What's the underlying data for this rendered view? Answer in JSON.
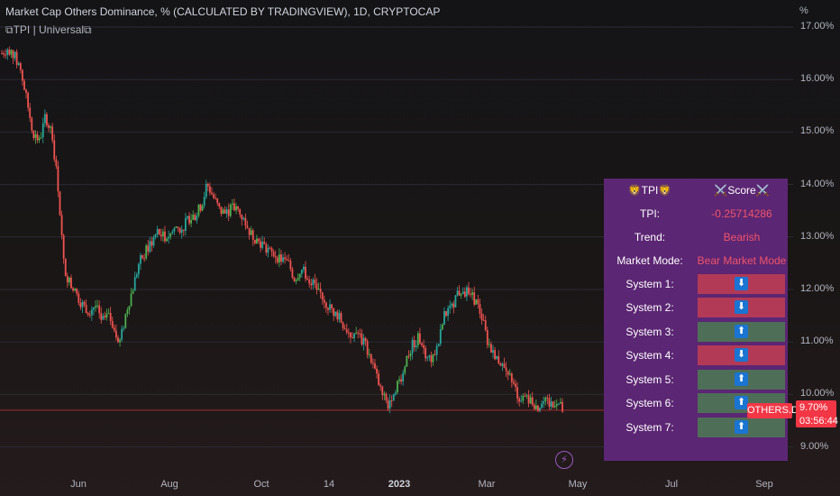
{
  "header": {
    "title": "Market Cap Others Dominance, % (CALCULATED BY TRADINGVIEW), 1D, CRYPTOCAP",
    "indicator": "⧉TPI | Universal⧉"
  },
  "price_scale": {
    "unit": "%",
    "ticks": [
      "17.00%",
      "16.00%",
      "15.00%",
      "14.00%",
      "13.00%",
      "12.00%",
      "11.00%",
      "10.00%",
      "9.00%"
    ]
  },
  "time_scale": {
    "ticks": [
      {
        "label": "Jun",
        "bold": false
      },
      {
        "label": "Aug",
        "bold": false
      },
      {
        "label": "Oct",
        "bold": false
      },
      {
        "label": "14",
        "bold": false
      },
      {
        "label": "2023",
        "bold": true
      },
      {
        "label": "Mar",
        "bold": false
      },
      {
        "label": "May",
        "bold": false
      },
      {
        "label": "Jul",
        "bold": false
      },
      {
        "label": "Sep",
        "bold": false
      }
    ]
  },
  "last_price": {
    "value": "9.70%",
    "countdown": "03:56:44",
    "symbol": "OTHERS.D",
    "color": "#f23645"
  },
  "colors": {
    "up_candle": "#26a69a",
    "up_candle_alt": "#4caf50",
    "down_candle": "#ef5350",
    "panel_bg": "#5b2673"
  },
  "tpi_table": {
    "header_left": "🦁TPI🦁",
    "header_right": "⚔️Score⚔️",
    "rows": [
      {
        "label": "TPI:",
        "value": "-0.25714286"
      },
      {
        "label": "Trend:",
        "value": "Bearish"
      },
      {
        "label": "Market Mode:",
        "value": "Bear Market Mode"
      }
    ],
    "systems": [
      {
        "label": "System 1:",
        "direction": "down",
        "arrow": "⬇"
      },
      {
        "label": "System 2:",
        "direction": "down",
        "arrow": "⬇"
      },
      {
        "label": "System 3:",
        "direction": "up",
        "arrow": "⬆"
      },
      {
        "label": "System 4:",
        "direction": "down",
        "arrow": "⬇"
      },
      {
        "label": "System 5:",
        "direction": "up",
        "arrow": "⬆"
      },
      {
        "label": "System 6:",
        "direction": "up",
        "arrow": "⬆"
      },
      {
        "label": "System 7:",
        "direction": "up",
        "arrow": "⬆"
      }
    ]
  },
  "chart_data": {
    "type": "candlestick",
    "series_name": "",
    "ylim": [
      9.0,
      17.0
    ],
    "x_ticks": [
      "Jun",
      "Aug",
      "Oct",
      "14",
      "2023",
      "Mar",
      "May",
      "Jul",
      "Sep"
    ],
    "y_ticks": [
      17,
      16,
      15,
      14,
      13,
      12,
      11,
      10,
      9
    ],
    "path_close": [
      16.5,
      16.6,
      16.45,
      16.2,
      15.6,
      15.0,
      14.8,
      15.3,
      15.0,
      14.0,
      12.4,
      12.1,
      11.9,
      11.7,
      11.6,
      11.7,
      11.4,
      11.5,
      11.3,
      11.0,
      11.6,
      12.0,
      12.5,
      12.7,
      12.9,
      13.1,
      13.0,
      13.05,
      13.2,
      13.15,
      13.35,
      13.4,
      13.6,
      14.0,
      13.75,
      13.5,
      13.45,
      13.55,
      13.5,
      13.3,
      13.05,
      12.95,
      12.85,
      12.7,
      12.65,
      12.55,
      12.5,
      12.2,
      12.4,
      12.25,
      12.1,
      11.95,
      11.75,
      11.6,
      11.5,
      11.3,
      11.15,
      11.2,
      11.0,
      10.8,
      10.4,
      10.0,
      9.8,
      10.1,
      10.3,
      10.7,
      10.95,
      11.1,
      10.8,
      10.7,
      10.9,
      11.5,
      11.6,
      11.9,
      12.0,
      11.9,
      11.8,
      11.5,
      11.0,
      10.8,
      10.6,
      10.45,
      10.2,
      9.95,
      9.9,
      9.9,
      9.75,
      9.85,
      9.8,
      9.9,
      9.7
    ],
    "last_value": 9.7
  }
}
